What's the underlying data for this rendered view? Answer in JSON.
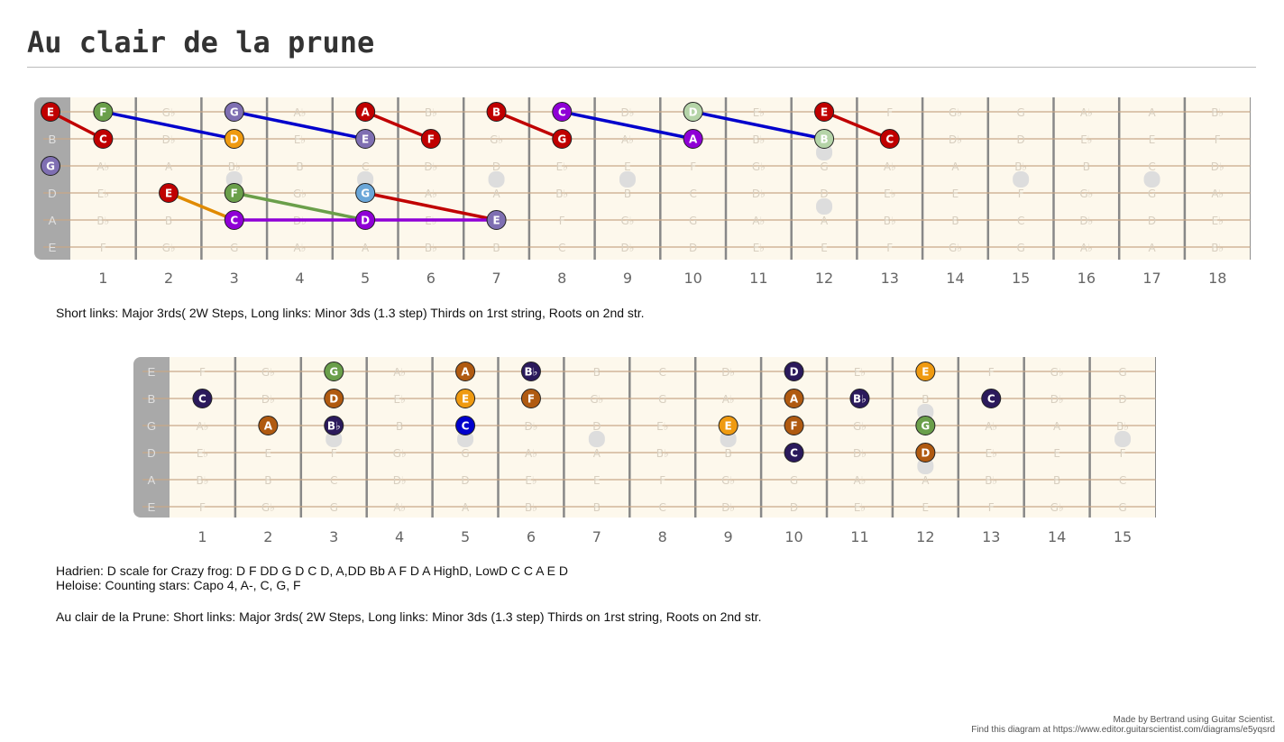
{
  "title": "Au clair de la prune",
  "captions": {
    "fb1": "Short links: Major 3rds( 2W Steps, Long links: Minor 3ds (1.3 step) Thirds on 1rst string, Roots on 2nd str.",
    "fb2_line1": "Hadrien: D scale for Crazy frog: D  F DD G D C D, A,DD Bb A F D A HighD, LowD C C A E D",
    "fb2_line2": "Heloise: Counting stars: Capo 4, A-, C, G, F",
    "fb2_line3": "Au clair de la Prune: Short links: Major 3rds( 2W Steps, Long links: Minor 3ds (1.3 step) Thirds on 1rst string, Roots on 2nd str."
  },
  "credit": {
    "line1": "Made by Bertrand using Guitar Scientist.",
    "line2": "Find this diagram at https://www.editor.guitarscientist.com/diagrams/e5yqsrd"
  },
  "colors": {
    "board_bg": "#fdf8ec",
    "nut": "#a9a9a9",
    "fret": "#888888",
    "string": "#c8a888",
    "ghost_text": "#d8cfc0",
    "inlay": "#dddddd",
    "fret_number": "#666666",
    "dark_red": "#c00000",
    "green": "#6a9f4a",
    "purple_grey": "#7f6fb2",
    "orange": "#e08a00",
    "violet": "#8f00d6",
    "light_blue": "#6aa6d8",
    "pale_green": "#b5d4a8",
    "indigo": "#2b1a5c",
    "brown": "#b05a10",
    "amber": "#ef9a10",
    "blue": "#0000cc"
  },
  "fretboards": [
    {
      "id": "fb1",
      "strings": [
        "E",
        "B",
        "G",
        "D",
        "A",
        "E"
      ],
      "fret_numbers": [
        "1",
        "2",
        "3",
        "4",
        "5",
        "6",
        "7",
        "8",
        "9",
        "10",
        "11",
        "12",
        "13",
        "14",
        "15",
        "16",
        "17",
        "18"
      ],
      "ghost_notes": [
        [
          "F",
          "G♭",
          "G",
          "A♭",
          "A",
          "B♭",
          "B",
          "C",
          "D♭",
          "D",
          "E♭",
          "E",
          "F",
          "G♭",
          "G",
          "A♭",
          "A",
          "B♭"
        ],
        [
          "C",
          "D♭",
          "D",
          "E♭",
          "E",
          "F",
          "G♭",
          "G",
          "A♭",
          "A",
          "B♭",
          "B",
          "C",
          "D♭",
          "D",
          "E♭",
          "E",
          "F"
        ],
        [
          "A♭",
          "A",
          "B♭",
          "B",
          "C",
          "D♭",
          "D",
          "E♭",
          "E",
          "F",
          "G♭",
          "G",
          "A♭",
          "A",
          "B♭",
          "B",
          "C",
          "D♭"
        ],
        [
          "E♭",
          "E",
          "F",
          "G♭",
          "G",
          "A♭",
          "A",
          "B♭",
          "B",
          "C",
          "D♭",
          "D",
          "E♭",
          "E",
          "F",
          "G♭",
          "G",
          "A♭"
        ],
        [
          "B♭",
          "B",
          "C",
          "D♭",
          "D",
          "E♭",
          "E",
          "F",
          "G♭",
          "G",
          "A♭",
          "A",
          "B♭",
          "B",
          "C",
          "D♭",
          "D",
          "E♭"
        ],
        [
          "F",
          "G♭",
          "G",
          "A♭",
          "A",
          "B♭",
          "B",
          "C",
          "D♭",
          "D",
          "E♭",
          "E",
          "F",
          "G♭",
          "G",
          "A♭",
          "A",
          "B♭"
        ]
      ],
      "notes": [
        {
          "label": "E",
          "string": 1,
          "fret": 0,
          "color": "dark_red"
        },
        {
          "label": "F",
          "string": 1,
          "fret": 1,
          "color": "green"
        },
        {
          "label": "G",
          "string": 1,
          "fret": 3,
          "color": "purple_grey"
        },
        {
          "label": "A",
          "string": 1,
          "fret": 5,
          "color": "dark_red"
        },
        {
          "label": "B",
          "string": 1,
          "fret": 7,
          "color": "dark_red"
        },
        {
          "label": "C",
          "string": 1,
          "fret": 8,
          "color": "violet"
        },
        {
          "label": "D",
          "string": 1,
          "fret": 10,
          "color": "pale_green"
        },
        {
          "label": "E",
          "string": 1,
          "fret": 12,
          "color": "dark_red"
        },
        {
          "label": "C",
          "string": 2,
          "fret": 1,
          "color": "dark_red"
        },
        {
          "label": "D",
          "string": 2,
          "fret": 3,
          "color": "amber"
        },
        {
          "label": "E",
          "string": 2,
          "fret": 5,
          "color": "purple_grey"
        },
        {
          "label": "F",
          "string": 2,
          "fret": 6,
          "color": "dark_red"
        },
        {
          "label": "G",
          "string": 2,
          "fret": 8,
          "color": "dark_red"
        },
        {
          "label": "A",
          "string": 2,
          "fret": 10,
          "color": "violet"
        },
        {
          "label": "B",
          "string": 2,
          "fret": 12,
          "color": "pale_green"
        },
        {
          "label": "C",
          "string": 2,
          "fret": 13,
          "color": "dark_red"
        },
        {
          "label": "G",
          "string": 3,
          "fret": 0,
          "color": "purple_grey"
        },
        {
          "label": "E",
          "string": 4,
          "fret": 2,
          "color": "dark_red"
        },
        {
          "label": "F",
          "string": 4,
          "fret": 3,
          "color": "green"
        },
        {
          "label": "G",
          "string": 4,
          "fret": 5,
          "color": "light_blue"
        },
        {
          "label": "C",
          "string": 5,
          "fret": 3,
          "color": "violet"
        },
        {
          "label": "D",
          "string": 5,
          "fret": 5,
          "color": "violet"
        },
        {
          "label": "E",
          "string": 5,
          "fret": 7,
          "color": "purple_grey"
        }
      ],
      "links": [
        {
          "from": [
            1,
            0
          ],
          "to": [
            2,
            1
          ],
          "color": "dark_red"
        },
        {
          "from": [
            1,
            1
          ],
          "to": [
            2,
            3
          ],
          "color": "blue"
        },
        {
          "from": [
            1,
            3
          ],
          "to": [
            2,
            5
          ],
          "color": "blue"
        },
        {
          "from": [
            1,
            5
          ],
          "to": [
            2,
            6
          ],
          "color": "dark_red"
        },
        {
          "from": [
            1,
            7
          ],
          "to": [
            2,
            8
          ],
          "color": "dark_red"
        },
        {
          "from": [
            1,
            8
          ],
          "to": [
            2,
            10
          ],
          "color": "blue"
        },
        {
          "from": [
            1,
            10
          ],
          "to": [
            2,
            12
          ],
          "color": "blue"
        },
        {
          "from": [
            1,
            12
          ],
          "to": [
            2,
            13
          ],
          "color": "dark_red"
        },
        {
          "from": [
            4,
            2
          ],
          "to": [
            5,
            3
          ],
          "color": "orange"
        },
        {
          "from": [
            4,
            3
          ],
          "to": [
            5,
            5
          ],
          "color": "green"
        },
        {
          "from": [
            4,
            5
          ],
          "to": [
            5,
            7
          ],
          "color": "dark_red"
        },
        {
          "from": [
            5,
            3
          ],
          "to": [
            5,
            5
          ],
          "color": "violet"
        },
        {
          "from": [
            5,
            5
          ],
          "to": [
            5,
            7
          ],
          "color": "violet"
        }
      ],
      "inlays": [
        [
          3,
          2.5
        ],
        [
          5,
          2.5
        ],
        [
          7,
          2.5
        ],
        [
          9,
          2.5
        ],
        [
          12,
          1.5
        ],
        [
          12,
          3.5
        ],
        [
          15,
          2.5
        ],
        [
          17,
          2.5
        ]
      ]
    },
    {
      "id": "fb2",
      "strings": [
        "E",
        "B",
        "G",
        "D",
        "A",
        "E"
      ],
      "fret_numbers": [
        "1",
        "2",
        "3",
        "4",
        "5",
        "6",
        "7",
        "8",
        "9",
        "10",
        "11",
        "12",
        "13",
        "14",
        "15"
      ],
      "ghost_notes": [
        [
          "F",
          "G♭",
          "G",
          "A♭",
          "A",
          "B♭",
          "B",
          "C",
          "D♭",
          "D",
          "E♭",
          "E",
          "F",
          "G♭",
          "G"
        ],
        [
          "C",
          "D♭",
          "D",
          "E♭",
          "E",
          "F",
          "G♭",
          "G",
          "A♭",
          "A",
          "B♭",
          "B",
          "C",
          "D♭",
          "D"
        ],
        [
          "A♭",
          "A",
          "B♭",
          "B",
          "C",
          "D♭",
          "D",
          "E♭",
          "E",
          "F",
          "G♭",
          "G",
          "A♭",
          "A",
          "B♭"
        ],
        [
          "E♭",
          "E",
          "F",
          "G♭",
          "G",
          "A♭",
          "A",
          "B♭",
          "B",
          "C",
          "D♭",
          "D",
          "E♭",
          "E",
          "F"
        ],
        [
          "B♭",
          "B",
          "C",
          "D♭",
          "D",
          "E♭",
          "E",
          "F",
          "G♭",
          "G",
          "A♭",
          "A",
          "B♭",
          "B",
          "C"
        ],
        [
          "F",
          "G♭",
          "G",
          "A♭",
          "A",
          "B♭",
          "B",
          "C",
          "D♭",
          "D",
          "E♭",
          "E",
          "F",
          "G♭",
          "G"
        ]
      ],
      "notes": [
        {
          "label": "G",
          "string": 1,
          "fret": 3,
          "color": "green"
        },
        {
          "label": "A",
          "string": 1,
          "fret": 5,
          "color": "brown"
        },
        {
          "label": "B♭",
          "string": 1,
          "fret": 6,
          "color": "indigo"
        },
        {
          "label": "D",
          "string": 1,
          "fret": 10,
          "color": "indigo"
        },
        {
          "label": "E",
          "string": 1,
          "fret": 12,
          "color": "amber"
        },
        {
          "label": "C",
          "string": 2,
          "fret": 1,
          "color": "indigo"
        },
        {
          "label": "D",
          "string": 2,
          "fret": 3,
          "color": "brown"
        },
        {
          "label": "E",
          "string": 2,
          "fret": 5,
          "color": "amber"
        },
        {
          "label": "F",
          "string": 2,
          "fret": 6,
          "color": "brown"
        },
        {
          "label": "A",
          "string": 2,
          "fret": 10,
          "color": "brown"
        },
        {
          "label": "B♭",
          "string": 2,
          "fret": 11,
          "color": "indigo"
        },
        {
          "label": "C",
          "string": 2,
          "fret": 13,
          "color": "indigo"
        },
        {
          "label": "A",
          "string": 3,
          "fret": 2,
          "color": "brown"
        },
        {
          "label": "B♭",
          "string": 3,
          "fret": 3,
          "color": "indigo"
        },
        {
          "label": "C",
          "string": 3,
          "fret": 5,
          "color": "blue"
        },
        {
          "label": "E",
          "string": 3,
          "fret": 9,
          "color": "amber"
        },
        {
          "label": "F",
          "string": 3,
          "fret": 10,
          "color": "brown"
        },
        {
          "label": "G",
          "string": 3,
          "fret": 12,
          "color": "green"
        },
        {
          "label": "C",
          "string": 4,
          "fret": 10,
          "color": "indigo"
        },
        {
          "label": "D",
          "string": 4,
          "fret": 12,
          "color": "brown"
        }
      ],
      "links": [],
      "inlays": [
        [
          3,
          2.5
        ],
        [
          5,
          2.5
        ],
        [
          7,
          2.5
        ],
        [
          9,
          2.5
        ],
        [
          12,
          1.5
        ],
        [
          12,
          3.5
        ],
        [
          15,
          2.5
        ]
      ]
    }
  ]
}
